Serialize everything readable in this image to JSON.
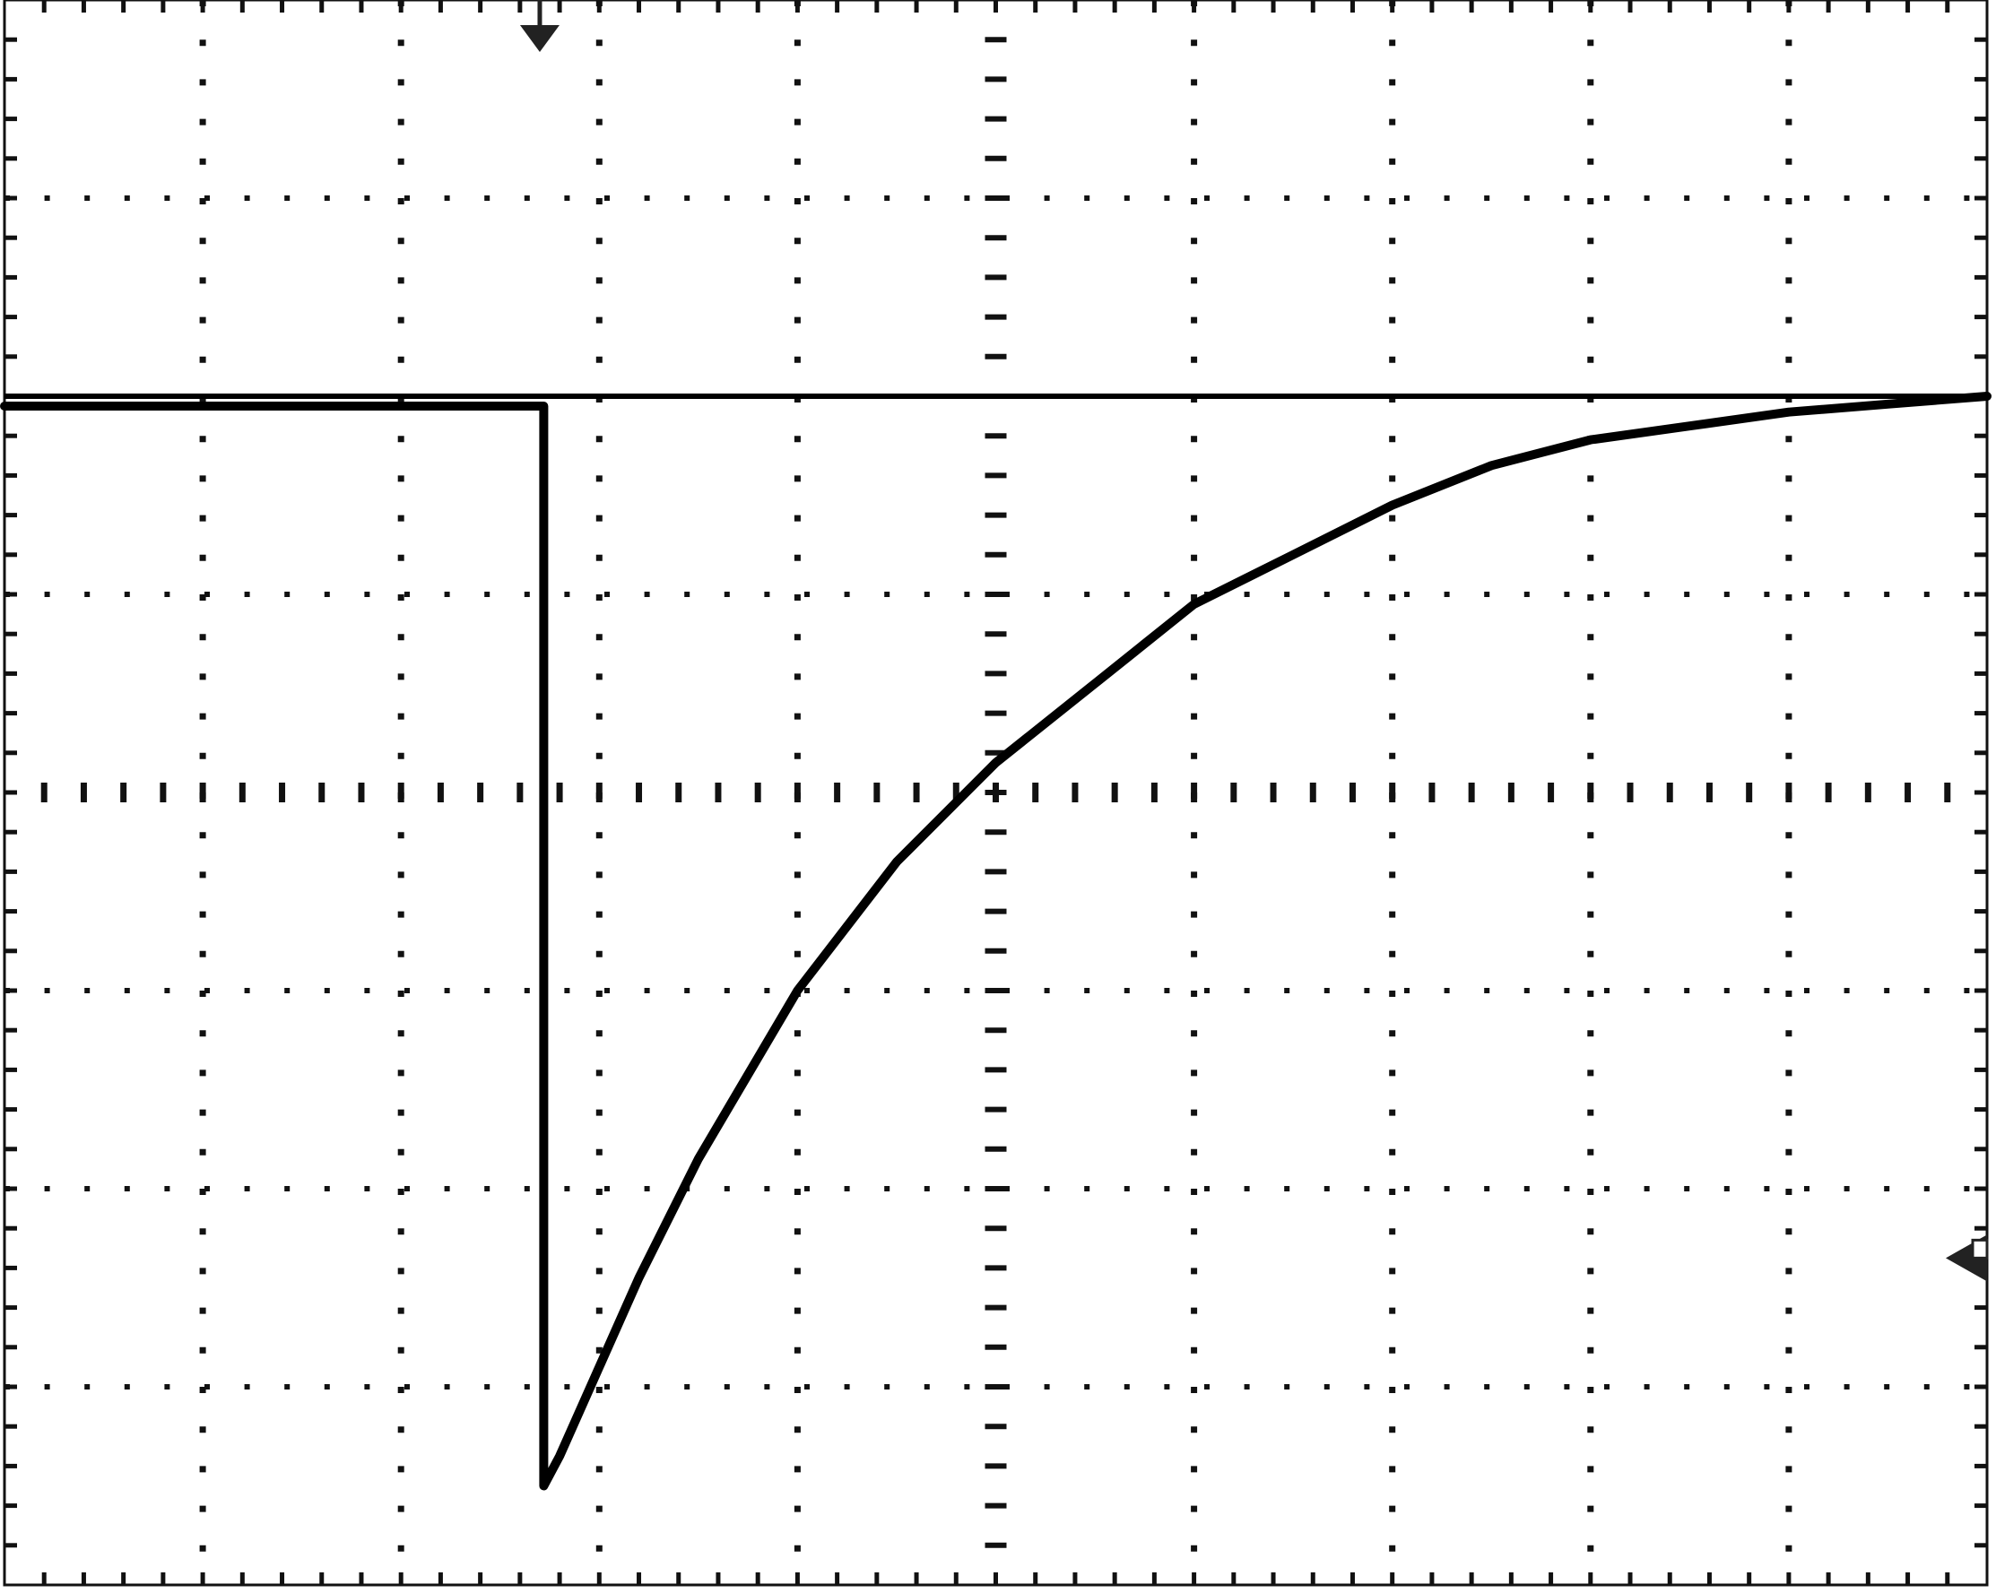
{
  "colors": {
    "background": "#ffffff",
    "grid": "#111111",
    "trace": "#000000",
    "marker": "#222222"
  },
  "chart_data": {
    "type": "line",
    "grid": true,
    "divisions": {
      "x": 10,
      "y": 8,
      "minor_per_division": 5
    },
    "xlim": [
      0,
      10
    ],
    "ylim": [
      -4,
      4
    ],
    "trigger_marker": {
      "position": "top",
      "x": 2.7
    },
    "ground_marker": {
      "position": "right",
      "y": -2.35
    },
    "series": [
      {
        "points": [
          [
            0.0,
            1.95
          ],
          [
            2.72,
            1.95
          ],
          [
            2.72,
            -3.5
          ],
          [
            2.8,
            -3.35
          ],
          [
            3.0,
            -2.9
          ],
          [
            3.2,
            -2.45
          ],
          [
            3.5,
            -1.85
          ],
          [
            4.0,
            -1.0
          ],
          [
            4.5,
            -0.35
          ],
          [
            5.0,
            0.15
          ],
          [
            5.5,
            0.55
          ],
          [
            6.0,
            0.95
          ],
          [
            6.5,
            1.2
          ],
          [
            7.0,
            1.45
          ],
          [
            7.5,
            1.65
          ],
          [
            8.0,
            1.78
          ],
          [
            8.5,
            1.85
          ],
          [
            9.0,
            1.92
          ],
          [
            9.5,
            1.96
          ],
          [
            10.0,
            2.0
          ]
        ]
      }
    ],
    "reference_line": {
      "y": 2.0
    }
  }
}
